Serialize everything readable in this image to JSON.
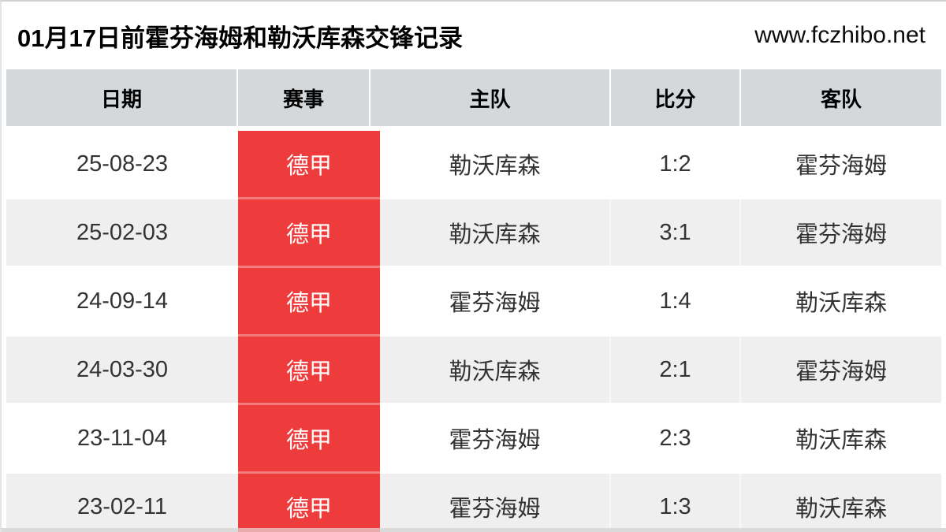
{
  "page": {
    "title": "01月17日前霍芬海姆和勒沃库森交锋记录",
    "site_url": "www.fczhibo.net"
  },
  "colors": {
    "league_badge_red": "#ee3b3b",
    "league_text": "#ffffff",
    "header_row_gray": "#d5d8db",
    "row_alt_gray": "#efefef",
    "cell_text": "#333333",
    "bottom_strip_gray": "#dadada"
  },
  "table": {
    "columns": [
      "日期",
      "赛事",
      "主队",
      "比分",
      "客队"
    ],
    "rows": [
      {
        "date": "25-08-23",
        "league": "德甲",
        "home": "勒沃库森",
        "score": "1:2",
        "away": "霍芬海姆"
      },
      {
        "date": "25-02-03",
        "league": "德甲",
        "home": "勒沃库森",
        "score": "3:1",
        "away": "霍芬海姆"
      },
      {
        "date": "24-09-14",
        "league": "德甲",
        "home": "霍芬海姆",
        "score": "1:4",
        "away": "勒沃库森"
      },
      {
        "date": "24-03-30",
        "league": "德甲",
        "home": "勒沃库森",
        "score": "2:1",
        "away": "霍芬海姆"
      },
      {
        "date": "23-11-04",
        "league": "德甲",
        "home": "霍芬海姆",
        "score": "2:3",
        "away": "勒沃库森"
      },
      {
        "date": "23-02-11",
        "league": "德甲",
        "home": "霍芬海姆",
        "score": "1:3",
        "away": "勒沃库森"
      }
    ]
  }
}
